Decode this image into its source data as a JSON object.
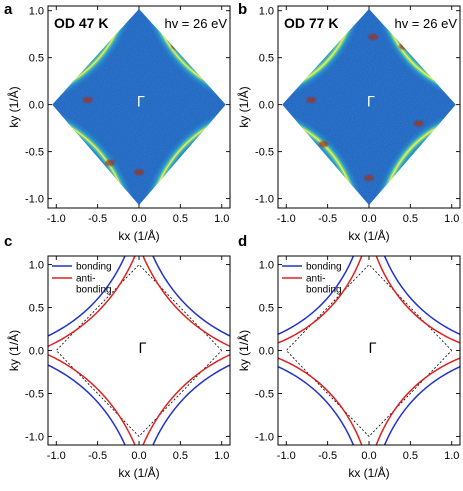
{
  "colors": {
    "bonding": "#2233cc",
    "antibonding": "#e02020",
    "bz_boundary": "#000000",
    "arpes_background": "#1b63b8",
    "arpes_mid": "#2fb0d6",
    "arpes_high": "#7be07a",
    "arpes_peak": "#f3e85a",
    "arpes_max": "#a03018"
  },
  "chart_data": [
    {
      "panel": "a",
      "type": "heatmap",
      "sample_label": "OD 47 K",
      "energy_label": "hv = 26 eV",
      "gamma_label": "Γ",
      "xlabel": "kx (1/Å)",
      "ylabel": "ky (1/Å)",
      "xlim": [
        -1.1,
        1.1
      ],
      "ylim": [
        -1.1,
        1.05
      ],
      "xticks": [
        -1.0,
        -0.5,
        0.0,
        0.5,
        1.0
      ],
      "xtick_labels": [
        "-1.0",
        "-0.5",
        "0.0",
        "0.5",
        "1.0"
      ],
      "yticks": [
        -1.0,
        -0.5,
        0.0,
        0.5,
        1.0
      ],
      "ytick_labels": [
        "-1.0",
        "-0.5",
        "0.0",
        "0.5",
        "1.0"
      ],
      "grid": false,
      "colormap": "jet-like intensity map within a diamond (rotated square) acquisition window",
      "fermi_surface_doping_boost": false
    },
    {
      "panel": "b",
      "type": "heatmap",
      "sample_label": "OD 77 K",
      "energy_label": "hv = 26 eV",
      "gamma_label": "Γ",
      "xlabel": "kx (1/Å)",
      "ylabel": "ky (1/Å)",
      "xlim": [
        -1.1,
        1.1
      ],
      "ylim": [
        -1.1,
        1.05
      ],
      "xticks": [
        -1.0,
        -0.5,
        0.0,
        0.5,
        1.0
      ],
      "xtick_labels": [
        "-1.0",
        "-0.5",
        "0.0",
        "0.5",
        "1.0"
      ],
      "yticks": [
        -1.0,
        -0.5,
        0.0,
        0.5,
        1.0
      ],
      "ytick_labels": [
        "-1.0",
        "-0.5",
        "0.0",
        "0.5",
        "1.0"
      ],
      "grid": false,
      "colormap": "jet-like intensity map within a diamond (rotated square) acquisition window",
      "fermi_surface_doping_boost": true
    },
    {
      "panel": "c",
      "type": "line",
      "gamma_label": "Γ",
      "xlabel": "kx (1/Å)",
      "ylabel": "ky (1/Å)",
      "xlim": [
        -1.1,
        1.1
      ],
      "ylim": [
        -1.1,
        1.1
      ],
      "xticks": [
        -1.0,
        -0.5,
        0.0,
        0.5,
        1.0
      ],
      "xtick_labels": [
        "-1.0",
        "-0.5",
        "0.0",
        "0.5",
        "1.0"
      ],
      "yticks": [
        -1.0,
        -0.5,
        0.0,
        0.5,
        1.0
      ],
      "ytick_labels": [
        "-1.0",
        "-0.5",
        "0.0",
        "0.5",
        "1.0"
      ],
      "grid": false,
      "legend": "top-left",
      "bz_boundary": [
        [
          1.0,
          0.0
        ],
        [
          0.0,
          1.0
        ],
        [
          -1.0,
          0.0
        ],
        [
          0.0,
          -1.0
        ],
        [
          1.0,
          0.0
        ]
      ],
      "series": [
        {
          "name": "bonding",
          "color_key": "bonding",
          "closest_point_to_M": [
            1.0,
            0.16
          ],
          "near_axis_crossing": 0.15
        },
        {
          "name": "anti-\nbonding",
          "color_key": "antibonding",
          "closest_point_to_M": [
            1.0,
            0.04
          ],
          "near_axis_crossing": 0.03
        }
      ],
      "legend_entries": [
        "bonding",
        "anti-",
        "bonding"
      ]
    },
    {
      "panel": "d",
      "type": "line",
      "gamma_label": "Γ",
      "xlabel": "kx (1/Å)",
      "ylabel": "ky (1/Å)",
      "xlim": [
        -1.1,
        1.1
      ],
      "ylim": [
        -1.1,
        1.1
      ],
      "xticks": [
        -1.0,
        -0.5,
        0.0,
        0.5,
        1.0
      ],
      "xtick_labels": [
        "-1.0",
        "-0.5",
        "0.0",
        "0.5",
        "1.0"
      ],
      "yticks": [
        -1.0,
        -0.5,
        0.0,
        0.5,
        1.0
      ],
      "ytick_labels": [
        "-1.0",
        "-0.5",
        "0.0",
        "0.5",
        "1.0"
      ],
      "grid": false,
      "legend": "top-left",
      "bz_boundary": [
        [
          1.0,
          0.0
        ],
        [
          0.0,
          1.0
        ],
        [
          -1.0,
          0.0
        ],
        [
          0.0,
          -1.0
        ],
        [
          1.0,
          0.0
        ]
      ],
      "series": [
        {
          "name": "bonding",
          "color_key": "bonding",
          "closest_point_to_M": [
            1.0,
            0.18
          ],
          "near_axis_crossing": 0.16
        },
        {
          "name": "anti-\nbonding",
          "color_key": "antibonding",
          "closest_point_to_M": [
            1.0,
            0.08
          ],
          "near_axis_crossing": 0.07
        }
      ],
      "legend_entries": [
        "bonding",
        "anti-",
        "bonding"
      ]
    }
  ]
}
